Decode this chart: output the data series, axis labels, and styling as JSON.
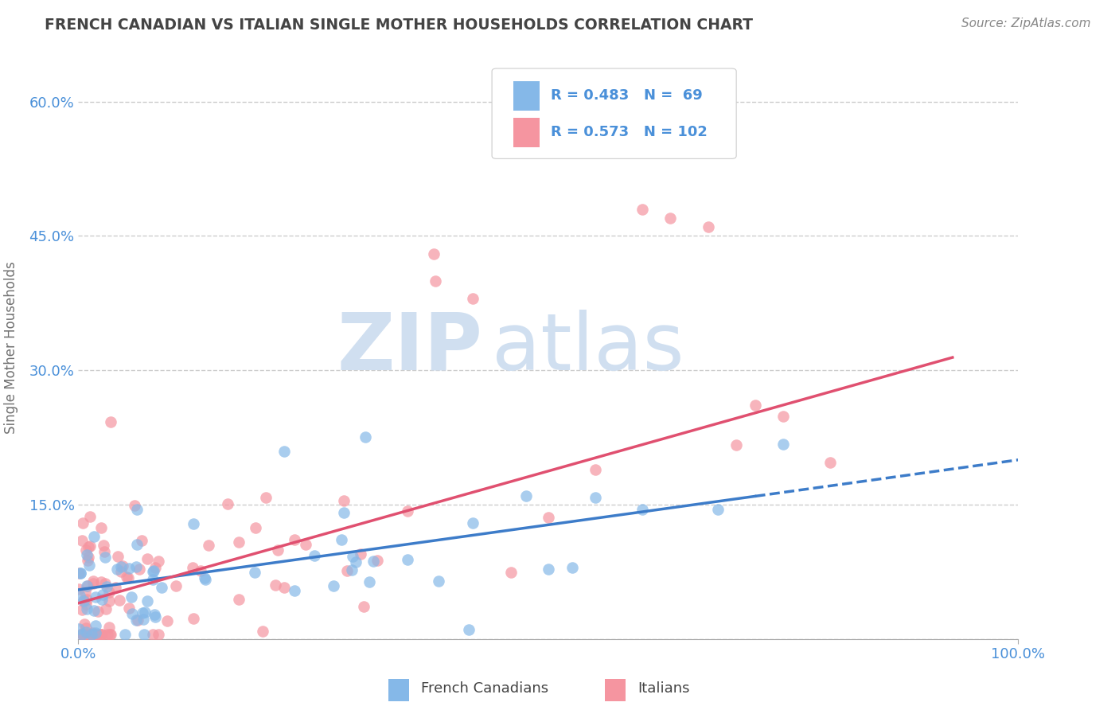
{
  "title": "FRENCH CANADIAN VS ITALIAN SINGLE MOTHER HOUSEHOLDS CORRELATION CHART",
  "source": "Source: ZipAtlas.com",
  "ylabel": "Single Mother Households",
  "xlim": [
    0,
    1.0
  ],
  "ylim": [
    0,
    0.65
  ],
  "yticks": [
    0.0,
    0.15,
    0.3,
    0.45,
    0.6
  ],
  "ytick_labels": [
    "",
    "15.0%",
    "30.0%",
    "45.0%",
    "60.0%"
  ],
  "legend_r1": "R = 0.483",
  "legend_n1": "N =  69",
  "legend_r2": "R = 0.573",
  "legend_n2": "N = 102",
  "fc_color": "#85b8e8",
  "it_color": "#f595a0",
  "fc_line_color": "#3d7cc9",
  "it_line_color": "#e05070",
  "background_color": "#ffffff",
  "title_color": "#444444",
  "axis_label_color": "#4a90d9",
  "tick_color": "#4a90d9",
  "grid_color": "#cccccc",
  "watermark_color": "#d0dff0",
  "fc_line_x_start": 0.0,
  "fc_line_x_solid_end": 0.72,
  "fc_line_x_dash_end": 1.0,
  "fc_line_y_intercept": 0.055,
  "fc_line_slope": 0.145,
  "it_line_x_start": 0.0,
  "it_line_x_end": 0.93,
  "it_line_y_intercept": 0.04,
  "it_line_slope": 0.295
}
